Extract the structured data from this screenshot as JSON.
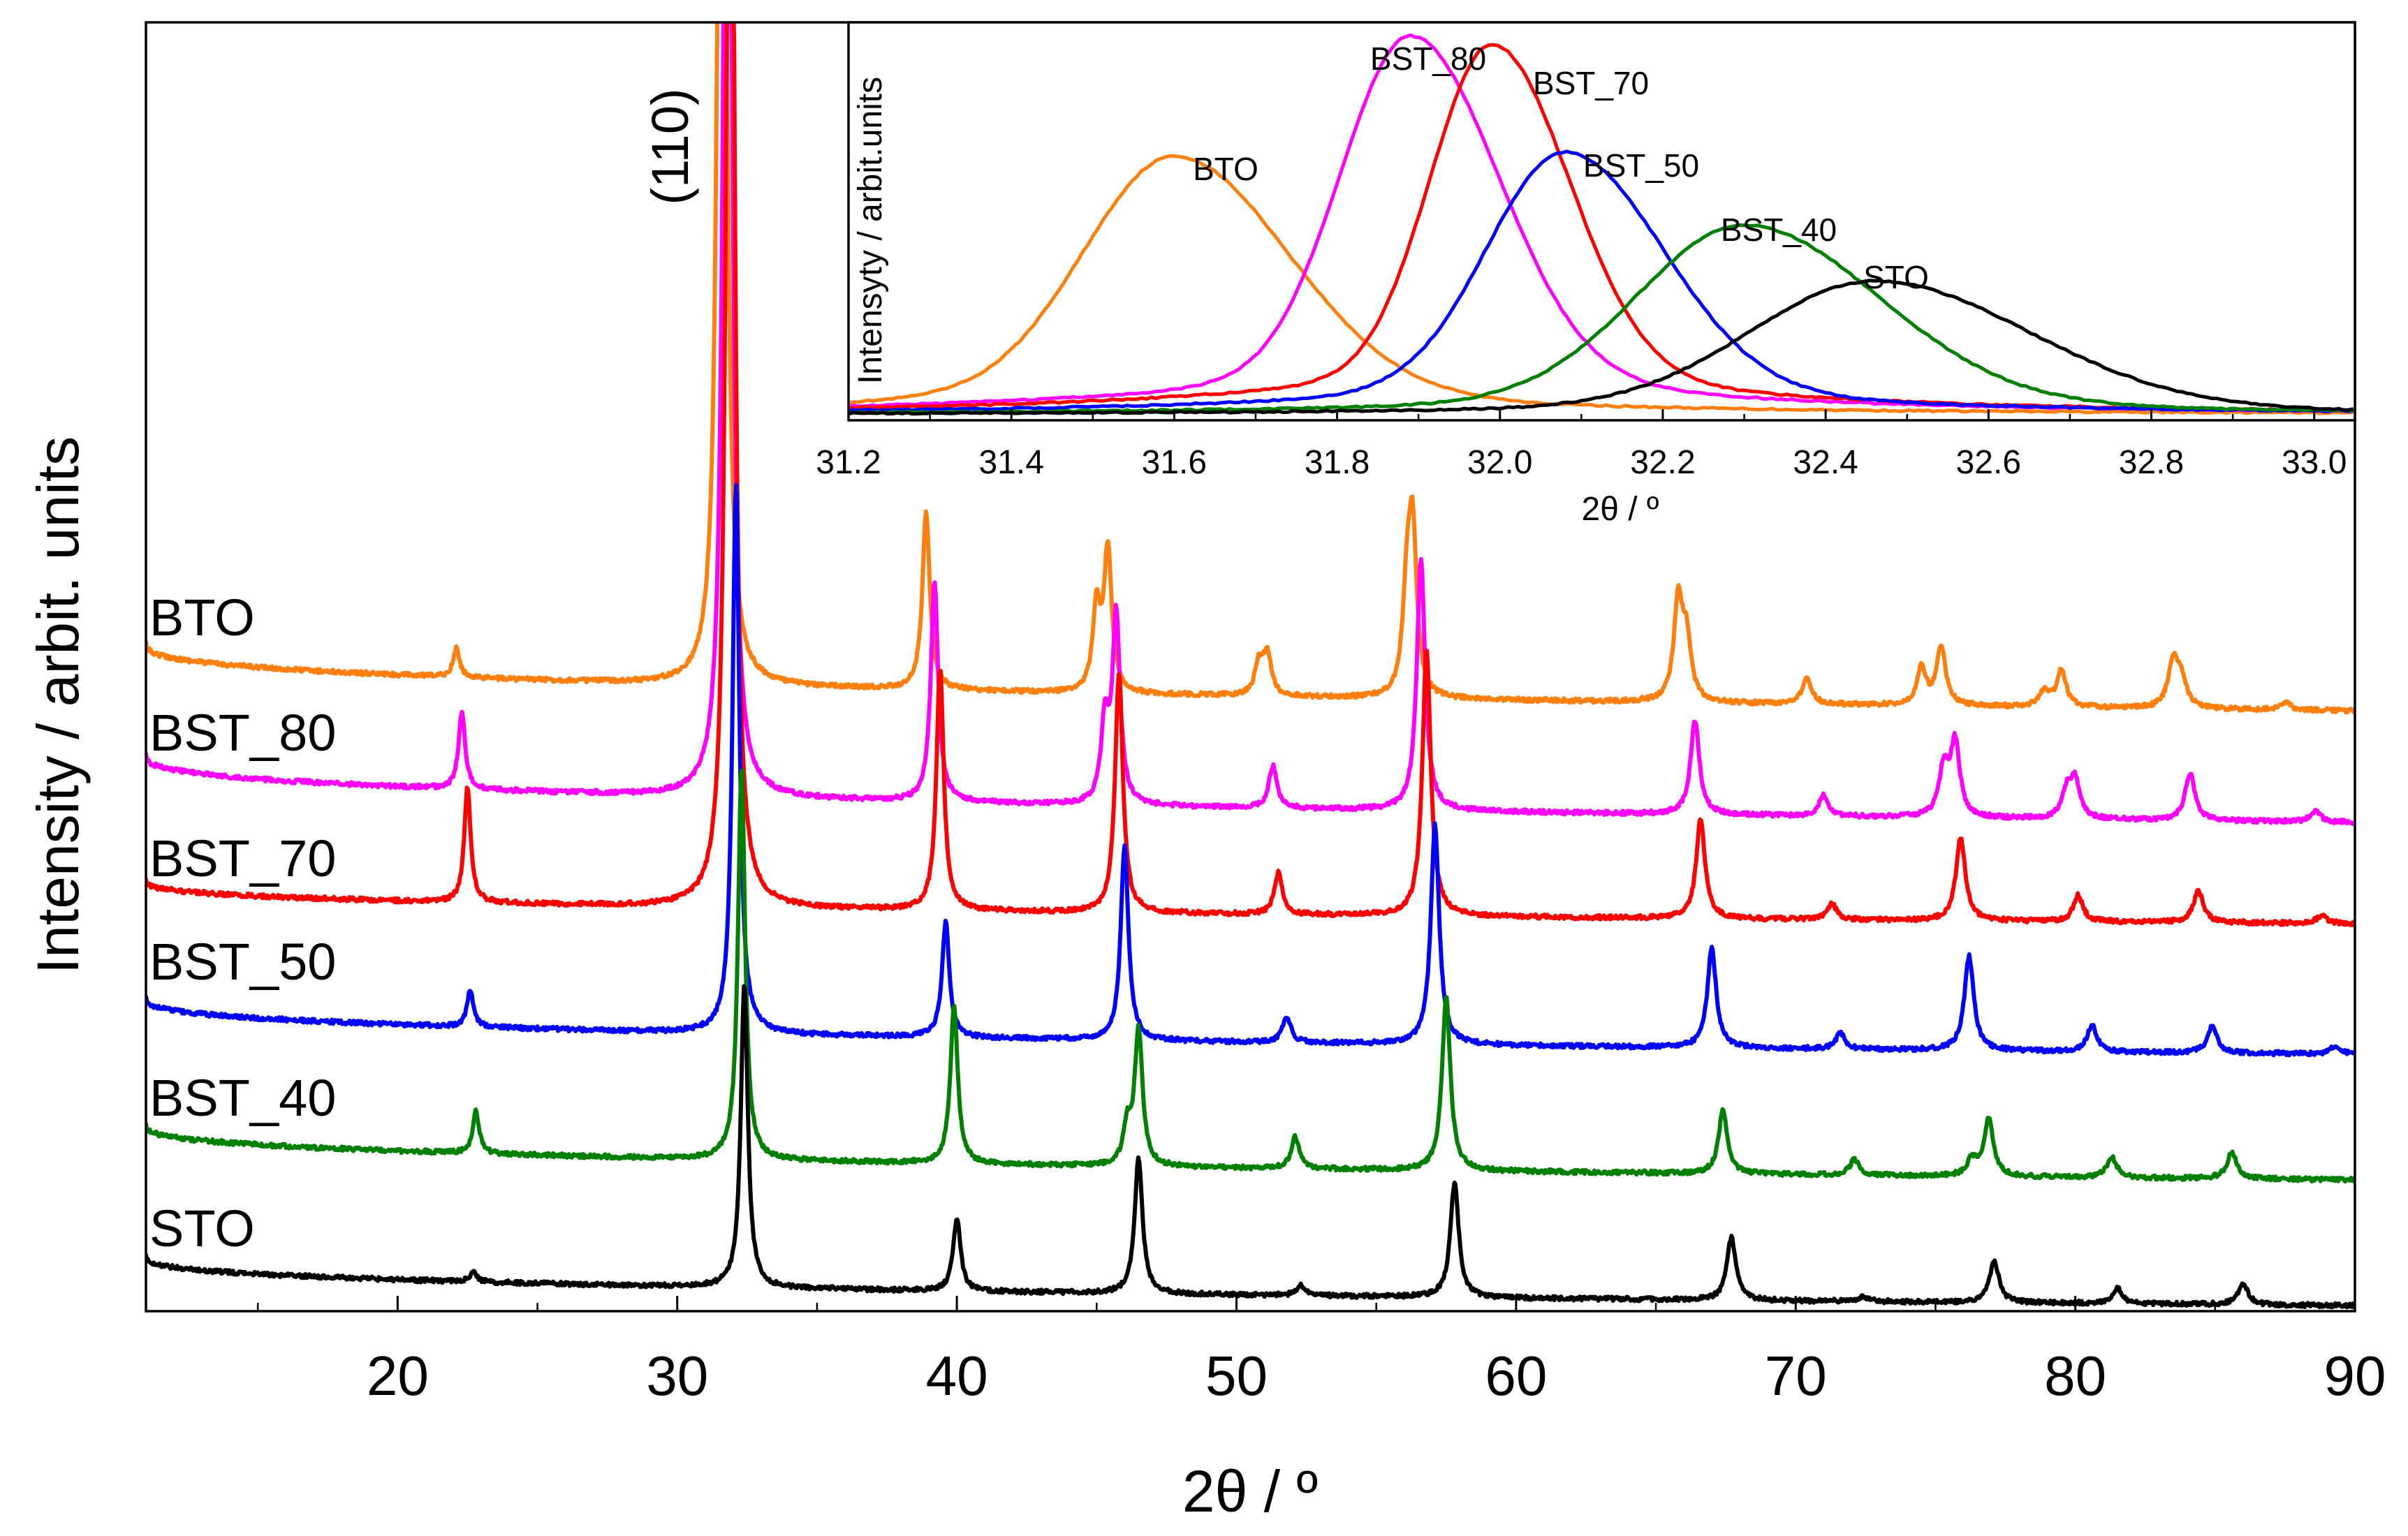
{
  "chart_data": [
    {
      "id": "main",
      "type": "line",
      "title": "",
      "xlabel": "2θ / º",
      "ylabel": "Intensity / arbit. units",
      "xlim": [
        11,
        90
      ],
      "xticks": [
        20,
        30,
        40,
        50,
        60,
        70,
        80,
        90
      ],
      "xtick_labels": [
        "20",
        "30",
        "40",
        "50",
        "60",
        "70",
        "80",
        "90"
      ],
      "yticks_shown": false,
      "peak_annotation": "(110)",
      "legend": "series labels placed at left of each offset curve",
      "series": [
        {
          "name": "BTO",
          "color": "#ff7f0e",
          "peaks": [
            [
              22.1,
              0.55
            ],
            [
              31.6,
              30
            ],
            [
              38.9,
              3.4
            ],
            [
              45.0,
              1.6
            ],
            [
              45.4,
              2.7
            ],
            [
              50.8,
              0.6
            ],
            [
              51.1,
              0.8
            ],
            [
              56.1,
              1.8
            ],
            [
              56.3,
              3.0
            ],
            [
              65.8,
              1.9
            ],
            [
              66.1,
              1.1
            ],
            [
              70.4,
              0.5
            ],
            [
              74.5,
              0.7
            ],
            [
              75.2,
              1.1
            ],
            [
              78.9,
              0.3
            ],
            [
              79.5,
              0.7
            ],
            [
              83.5,
              0.9
            ],
            [
              83.8,
              0.5
            ],
            [
              87.5,
              0.15
            ]
          ]
        },
        {
          "name": "BST_80",
          "color": "#ff00ff",
          "peaks": [
            [
              22.3,
              1.5
            ],
            [
              31.8,
              30
            ],
            [
              39.2,
              4.2
            ],
            [
              45.3,
              1.5
            ],
            [
              45.7,
              3.6
            ],
            [
              51.3,
              0.8
            ],
            [
              56.6,
              4.8
            ],
            [
              66.4,
              1.8
            ],
            [
              71.0,
              0.4
            ],
            [
              75.3,
              0.9
            ],
            [
              75.7,
              1.4
            ],
            [
              79.7,
              0.5
            ],
            [
              80.0,
              0.7
            ],
            [
              84.1,
              0.9
            ],
            [
              88.6,
              0.2
            ]
          ]
        },
        {
          "name": "BST_70",
          "color": "#ff0000",
          "peaks": [
            [
              22.5,
              2.2
            ],
            [
              31.9,
              30
            ],
            [
              39.4,
              4.6
            ],
            [
              45.8,
              4.6
            ],
            [
              51.5,
              0.8
            ],
            [
              56.8,
              5.1
            ],
            [
              66.6,
              1.9
            ],
            [
              71.3,
              0.3
            ],
            [
              75.9,
              1.6
            ],
            [
              80.1,
              0.5
            ],
            [
              84.4,
              0.6
            ],
            [
              88.8,
              0.15
            ]
          ]
        },
        {
          "name": "BST_50",
          "color": "#0000ff",
          "peaks": [
            [
              22.6,
              0.7
            ],
            [
              32.1,
              10.5
            ],
            [
              39.6,
              2.2
            ],
            [
              46.0,
              3.7
            ],
            [
              51.8,
              0.5
            ],
            [
              57.1,
              4.2
            ],
            [
              67.0,
              1.9
            ],
            [
              71.6,
              0.3
            ],
            [
              76.2,
              1.8
            ],
            [
              80.6,
              0.5
            ],
            [
              84.9,
              0.5
            ],
            [
              89.3,
              0.15
            ]
          ]
        },
        {
          "name": "BST_40",
          "color": "#008000",
          "peaks": [
            [
              22.8,
              0.8
            ],
            [
              32.3,
              7.5
            ],
            [
              39.9,
              3.0
            ],
            [
              46.1,
              0.7
            ],
            [
              46.5,
              2.6
            ],
            [
              52.1,
              0.6
            ],
            [
              57.5,
              3.3
            ],
            [
              67.4,
              1.2
            ],
            [
              72.1,
              0.3
            ],
            [
              76.3,
              0.3
            ],
            [
              76.9,
              1.1
            ],
            [
              81.3,
              0.4
            ],
            [
              85.6,
              0.5
            ]
          ]
        },
        {
          "name": "STO",
          "color": "#000000",
          "peaks": [
            [
              22.7,
              0.2
            ],
            [
              32.4,
              5.8
            ],
            [
              40.0,
              1.4
            ],
            [
              46.5,
              2.6
            ],
            [
              52.3,
              0.2
            ],
            [
              57.8,
              2.2
            ],
            [
              67.7,
              1.2
            ],
            [
              72.4,
              0.1
            ],
            [
              77.1,
              0.8
            ],
            [
              81.5,
              0.3
            ],
            [
              86.0,
              0.4
            ]
          ]
        }
      ]
    },
    {
      "id": "inset",
      "type": "line",
      "title": "",
      "xlabel": "2θ / º",
      "ylabel": "Intensyty / arbit.units",
      "xlim": [
        31.2,
        33.05
      ],
      "xticks": [
        31.2,
        31.4,
        31.6,
        31.8,
        32.0,
        32.2,
        32.4,
        32.6,
        32.8,
        33.0
      ],
      "xtick_labels": [
        "31.2",
        "31.4",
        "31.6",
        "31.8",
        "32.0",
        "32.2",
        "32.4",
        "32.6",
        "32.8",
        "33.0"
      ],
      "ylim": [
        0,
        1
      ],
      "series": [
        {
          "name": "BTO",
          "color": "#ff7f0e",
          "label": "BTO",
          "center": 31.6,
          "height": 0.6
        },
        {
          "name": "BST_80",
          "color": "#ff00ff",
          "label": "BST_80",
          "center": 31.89,
          "height": 0.88
        },
        {
          "name": "BST_70",
          "color": "#ff0000",
          "label": "BST_70",
          "center": 31.99,
          "height": 0.86
        },
        {
          "name": "BST_50",
          "color": "#0000ff",
          "label": "BST_50",
          "center": 32.08,
          "height": 0.61
        },
        {
          "name": "BST_40",
          "color": "#008000",
          "label": "BST_40",
          "center": 32.3,
          "height": 0.44
        },
        {
          "name": "STO",
          "color": "#000000",
          "label": "STO",
          "center": 32.46,
          "height": 0.31
        }
      ]
    }
  ]
}
